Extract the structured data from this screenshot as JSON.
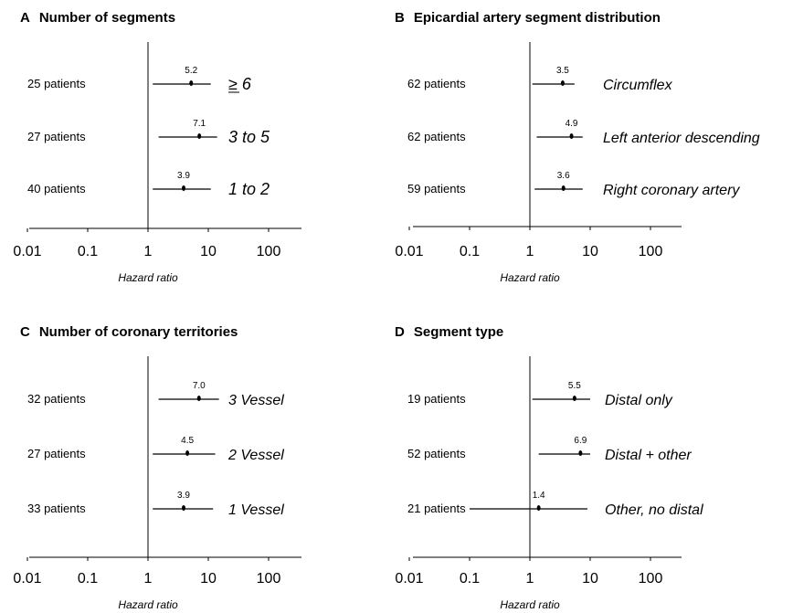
{
  "chart_data": [
    {
      "type": "forest",
      "panel": "A",
      "title": "Number of segments",
      "xlabel": "Hazard ratio",
      "xscale": "log",
      "xlim": [
        0.01,
        300
      ],
      "reference": 1,
      "xticks": [
        "0.01",
        "0.1",
        "1",
        "10",
        "100"
      ],
      "rows": [
        {
          "patients": "25 patients",
          "label": "≥ 6",
          "value": 5.2,
          "value_label": "5.2",
          "ci": [
            1.2,
            11
          ]
        },
        {
          "patients": "27 patients",
          "label": "3 to 5",
          "value": 7.1,
          "value_label": "7.1",
          "ci": [
            1.5,
            14
          ]
        },
        {
          "patients": "40 patients",
          "label": "1 to 2",
          "value": 3.9,
          "value_label": "3.9",
          "ci": [
            1.2,
            11
          ]
        }
      ]
    },
    {
      "type": "forest",
      "panel": "B",
      "title": "Epicardial artery segment distribution",
      "xlabel": "Hazard ratio",
      "xscale": "log",
      "xlim": [
        0.01,
        300
      ],
      "reference": 1,
      "xticks": [
        "0.01",
        "0.1",
        "1",
        "10",
        "100"
      ],
      "rows": [
        {
          "patients": "62 patients",
          "label": "Circumflex",
          "value": 3.5,
          "value_label": "3.5",
          "ci": [
            1.1,
            5.5
          ]
        },
        {
          "patients": "62 patients",
          "label": "Left anterior descending",
          "value": 4.9,
          "value_label": "4.9",
          "ci": [
            1.3,
            7.5
          ]
        },
        {
          "patients": "59 patients",
          "label": "Right coronary artery",
          "value": 3.6,
          "value_label": "3.6",
          "ci": [
            1.2,
            7.5
          ]
        }
      ]
    },
    {
      "type": "forest",
      "panel": "C",
      "title": "Number of coronary territories",
      "xlabel": "Hazard ratio",
      "xscale": "log",
      "xlim": [
        0.01,
        300
      ],
      "reference": 1,
      "xticks": [
        "0.01",
        "0.1",
        "1",
        "10",
        "100"
      ],
      "rows": [
        {
          "patients": "32 patients",
          "label": "3 Vessel",
          "value": 7.0,
          "value_label": "7.0",
          "ci": [
            1.5,
            15
          ]
        },
        {
          "patients": "27 patients",
          "label": "2 Vessel",
          "value": 4.5,
          "value_label": "4.5",
          "ci": [
            1.2,
            13
          ]
        },
        {
          "patients": "33 patients",
          "label": "1 Vessel",
          "value": 3.9,
          "value_label": "3.9",
          "ci": [
            1.2,
            12
          ]
        }
      ]
    },
    {
      "type": "forest",
      "panel": "D",
      "title": "Segment type",
      "xlabel": "Hazard ratio",
      "xscale": "log",
      "xlim": [
        0.01,
        300
      ],
      "reference": 1,
      "xticks": [
        "0.01",
        "0.1",
        "1",
        "10",
        "100"
      ],
      "rows": [
        {
          "patients": "19 patients",
          "label": "Distal only",
          "value": 5.5,
          "value_label": "5.5",
          "ci": [
            1.1,
            10
          ]
        },
        {
          "patients": "52 patients",
          "label": "Distal + other",
          "value": 6.9,
          "value_label": "6.9",
          "ci": [
            1.4,
            10
          ]
        },
        {
          "patients": "21 patients",
          "label": "Other, no distal",
          "value": 1.4,
          "value_label": "1.4",
          "ci": [
            0.1,
            9
          ]
        }
      ]
    }
  ]
}
